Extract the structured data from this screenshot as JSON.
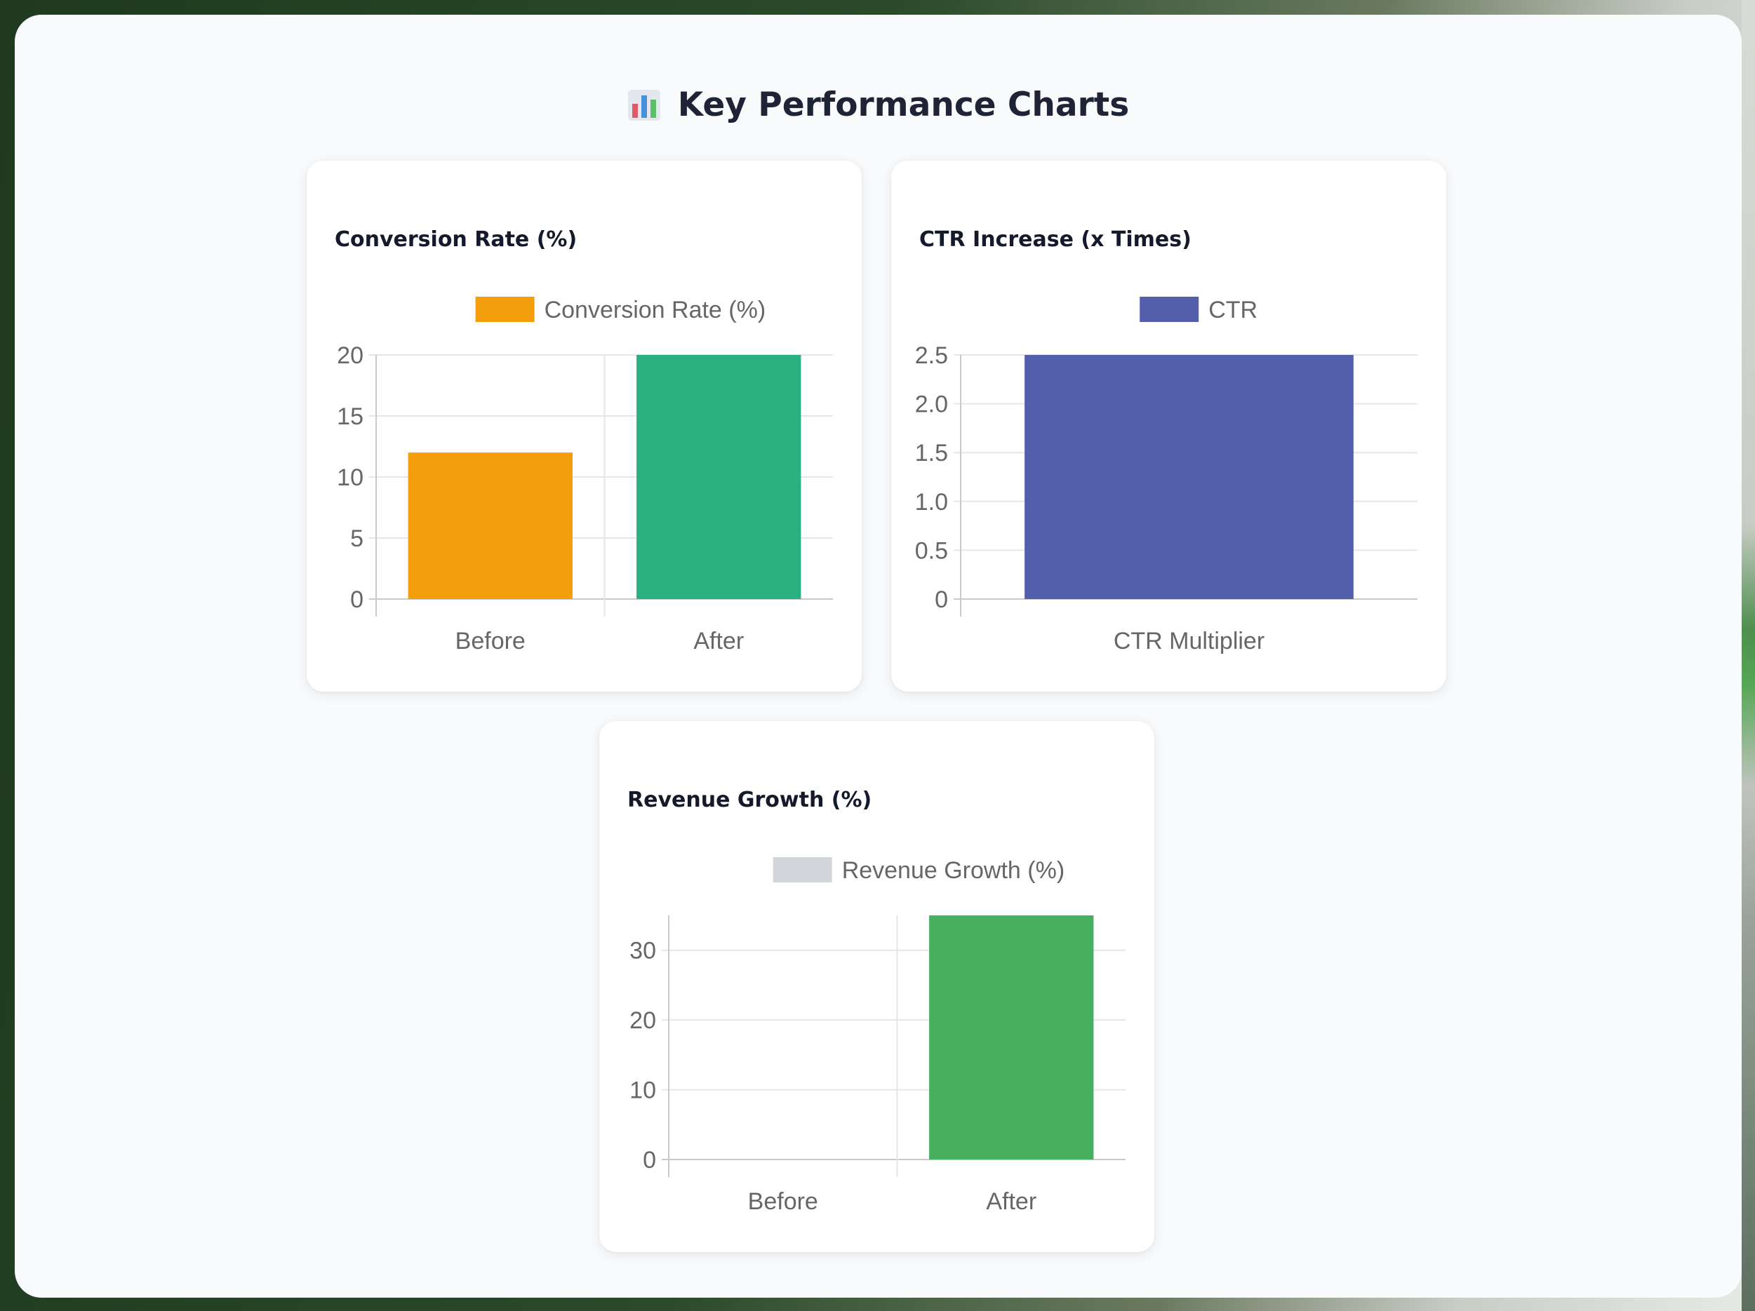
{
  "page": {
    "title": "Key Performance Charts",
    "title_icon": "bar-chart-icon"
  },
  "chart_data": [
    {
      "type": "bar",
      "title": "Conversion Rate (%)",
      "categories": [
        "Before",
        "After"
      ],
      "series": [
        {
          "name": "Conversion Rate (%)",
          "values": [
            12,
            20
          ],
          "colors": [
            "#f59e0b",
            "#2bb180"
          ]
        }
      ],
      "legend": {
        "label": "Conversion Rate (%)",
        "color": "#f59e0b",
        "placement": "top"
      },
      "yticks": [
        "0",
        "5",
        "10",
        "15",
        "20"
      ],
      "ylim": [
        0,
        20
      ],
      "grid": true
    },
    {
      "type": "bar",
      "title": "CTR Increase (x Times)",
      "categories": [
        "CTR Multiplier"
      ],
      "series": [
        {
          "name": "CTR",
          "values": [
            2.5
          ],
          "colors": [
            "#535fab"
          ]
        }
      ],
      "legend": {
        "label": "CTR",
        "color": "#535fab",
        "placement": "top"
      },
      "yticks": [
        "0",
        "0.5",
        "1.0",
        "1.5",
        "2.0",
        "2.5"
      ],
      "ylim": [
        0,
        2.5
      ],
      "grid": true
    },
    {
      "type": "bar",
      "title": "Revenue Growth (%)",
      "categories": [
        "Before",
        "After"
      ],
      "series": [
        {
          "name": "Revenue Growth (%)",
          "values": [
            0,
            35
          ],
          "colors": [
            "#d1d5db",
            "#46af60"
          ]
        }
      ],
      "legend": {
        "label": "Revenue Growth (%)",
        "color": "#d1d5db",
        "placement": "top"
      },
      "yticks": [
        "0",
        "10",
        "20",
        "30"
      ],
      "ylim": [
        0,
        35
      ],
      "grid": true
    }
  ]
}
